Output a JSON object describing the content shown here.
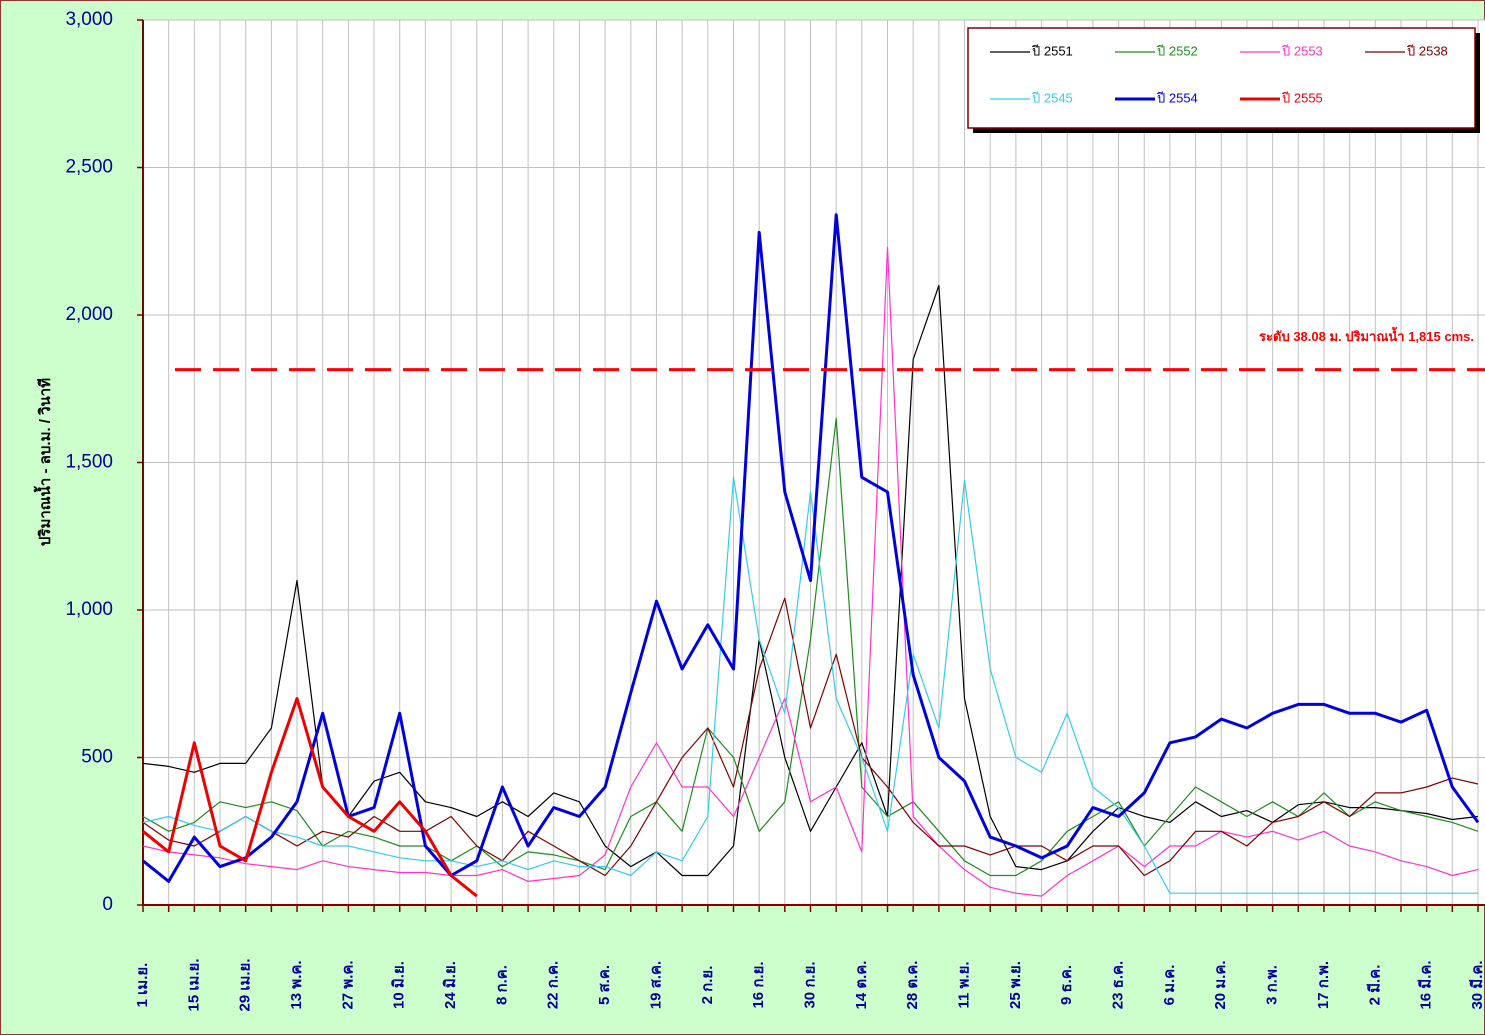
{
  "chart_data": {
    "type": "line",
    "y_label": "ปริมาณน้ำ - ลบ.ม. / วินาที",
    "ylim": [
      0,
      3000
    ],
    "yticks": [
      0,
      500,
      {
        "value": 1000,
        "label": "1,000"
      },
      {
        "value": 1500,
        "label": "1,500"
      },
      {
        "value": 2000,
        "label": "2,000"
      },
      {
        "value": 2500,
        "label": "2,500"
      },
      {
        "value": 3000,
        "label": "3,000"
      }
    ],
    "grid": true,
    "legend": "upper right",
    "reference_line": {
      "value": 1815,
      "label": "ระดับ 38.08 ม. ปริมาณน้ำ 1,815 cms.",
      "color": "#ff0000"
    },
    "categories": [
      "1 เม.ย.",
      null,
      "15 เม.ย.",
      null,
      "29 เม.ย.",
      null,
      "13 พ.ค.",
      null,
      "27 พ.ค.",
      null,
      "10 มิ.ย.",
      null,
      "24 มิ.ย.",
      null,
      "8 ก.ค.",
      null,
      "22 ก.ค.",
      null,
      "5 ส.ค.",
      null,
      "19 ส.ค.",
      null,
      "2 ก.ย.",
      null,
      "16 ก.ย.",
      null,
      "30 ก.ย.",
      null,
      "14 ต.ค.",
      null,
      "28 ต.ค.",
      null,
      "11 พ.ย.",
      null,
      "25 พ.ย.",
      null,
      "9 ธ.ค.",
      null,
      "23 ธ.ค.",
      null,
      "6 ม.ค.",
      null,
      "20 ม.ค.",
      null,
      "3 ก.พ.",
      null,
      "17 ก.พ.",
      null,
      "2 มี.ค.",
      null,
      "16 มี.ค.",
      null,
      "30 มี.ค."
    ],
    "series": [
      {
        "name": "ปี 2551",
        "color": "#000000",
        "width": 1.2,
        "values": [
          480,
          470,
          450,
          480,
          480,
          600,
          1100,
          400,
          300,
          420,
          450,
          350,
          330,
          300,
          350,
          300,
          380,
          350,
          200,
          130,
          180,
          100,
          100,
          200,
          900,
          500,
          250,
          400,
          550,
          300,
          1850,
          2100,
          700,
          300,
          130,
          120,
          150,
          250,
          330,
          300,
          280,
          350,
          300,
          320,
          280,
          340,
          350,
          330,
          330,
          320,
          310,
          290,
          300
        ]
      },
      {
        "name": "ปี 2552",
        "color": "#1e8c1e",
        "width": 1.2,
        "values": [
          300,
          250,
          280,
          350,
          330,
          350,
          320,
          200,
          250,
          230,
          200,
          200,
          150,
          200,
          130,
          180,
          170,
          150,
          120,
          300,
          350,
          250,
          600,
          500,
          250,
          350,
          900,
          1650,
          400,
          300,
          350,
          250,
          150,
          100,
          100,
          150,
          250,
          300,
          350,
          200,
          300,
          400,
          350,
          300,
          350,
          300,
          380,
          300,
          350,
          320,
          300,
          280,
          250
        ]
      },
      {
        "name": "ปี 2553",
        "color": "#ff33cc",
        "width": 1.2,
        "values": [
          200,
          180,
          170,
          160,
          140,
          130,
          120,
          150,
          130,
          120,
          110,
          110,
          100,
          100,
          120,
          80,
          90,
          100,
          170,
          400,
          550,
          400,
          400,
          300,
          500,
          700,
          350,
          400,
          180,
          2230,
          300,
          200,
          120,
          60,
          40,
          30,
          100,
          150,
          200,
          130,
          200,
          200,
          250,
          230,
          250,
          220,
          250,
          200,
          180,
          150,
          130,
          100,
          120
        ]
      },
      {
        "name": "ปี 2538",
        "color": "#800000",
        "width": 1.2,
        "values": [
          280,
          220,
          200,
          250,
          300,
          250,
          200,
          250,
          230,
          300,
          250,
          250,
          300,
          200,
          150,
          250,
          200,
          150,
          100,
          200,
          350,
          500,
          600,
          400,
          800,
          1040,
          600,
          850,
          500,
          400,
          280,
          200,
          200,
          170,
          200,
          200,
          150,
          200,
          200,
          100,
          150,
          250,
          250,
          200,
          280,
          300,
          350,
          300,
          380,
          380,
          400,
          430,
          410
        ]
      },
      {
        "name": "ปี 2545",
        "color": "#33ccee",
        "width": 1.2,
        "values": [
          280,
          300,
          270,
          250,
          300,
          250,
          230,
          200,
          200,
          180,
          160,
          150,
          150,
          130,
          150,
          120,
          150,
          130,
          130,
          100,
          180,
          150,
          300,
          1450,
          900,
          650,
          1400,
          700,
          500,
          250,
          850,
          600,
          1440,
          800,
          500,
          450,
          650,
          400,
          330,
          200,
          40,
          40,
          40,
          40,
          40,
          40,
          40,
          40,
          40,
          40,
          40,
          40,
          40
        ]
      },
      {
        "name": "ปี 2554",
        "color": "#0000dd",
        "width": 3,
        "values": [
          150,
          80,
          230,
          130,
          160,
          230,
          350,
          650,
          300,
          330,
          650,
          200,
          100,
          150,
          400,
          200,
          330,
          300,
          400,
          720,
          1030,
          800,
          950,
          800,
          2280,
          1400,
          1100,
          2340,
          1450,
          1400,
          780,
          500,
          420,
          230,
          200,
          160,
          200,
          330,
          300,
          380,
          550,
          570,
          630,
          600,
          650,
          680,
          680,
          650,
          650,
          620,
          660,
          400,
          280
        ]
      },
      {
        "name": "ปี 2555",
        "color": "#ee0000",
        "width": 3,
        "values": [
          250,
          180,
          550,
          200,
          150,
          450,
          700,
          400,
          300,
          250,
          350,
          250,
          100,
          30,
          null,
          null,
          null,
          null,
          null,
          null,
          null,
          null,
          null,
          null,
          null,
          null,
          null,
          null,
          null,
          null,
          null,
          null,
          null,
          null,
          null,
          null,
          null,
          null,
          null,
          null,
          null,
          null,
          null,
          null,
          null,
          null,
          null,
          null,
          null,
          null,
          null,
          null,
          null
        ]
      }
    ]
  }
}
